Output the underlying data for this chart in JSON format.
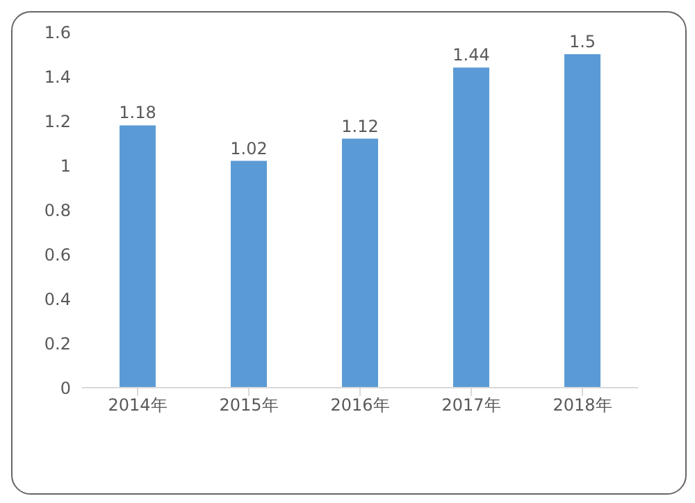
{
  "chart_data": {
    "type": "bar",
    "categories": [
      "2014年",
      "2015年",
      "2016年",
      "2017年",
      "2018年"
    ],
    "values": [
      1.18,
      1.02,
      1.12,
      1.44,
      1.5
    ],
    "color": "#5b9bd5",
    "ylim": [
      0,
      1.6
    ],
    "yticks": [
      0,
      0.2,
      0.4,
      0.6,
      0.8,
      1,
      1.2,
      1.4,
      1.6
    ],
    "data_labels": true
  }
}
